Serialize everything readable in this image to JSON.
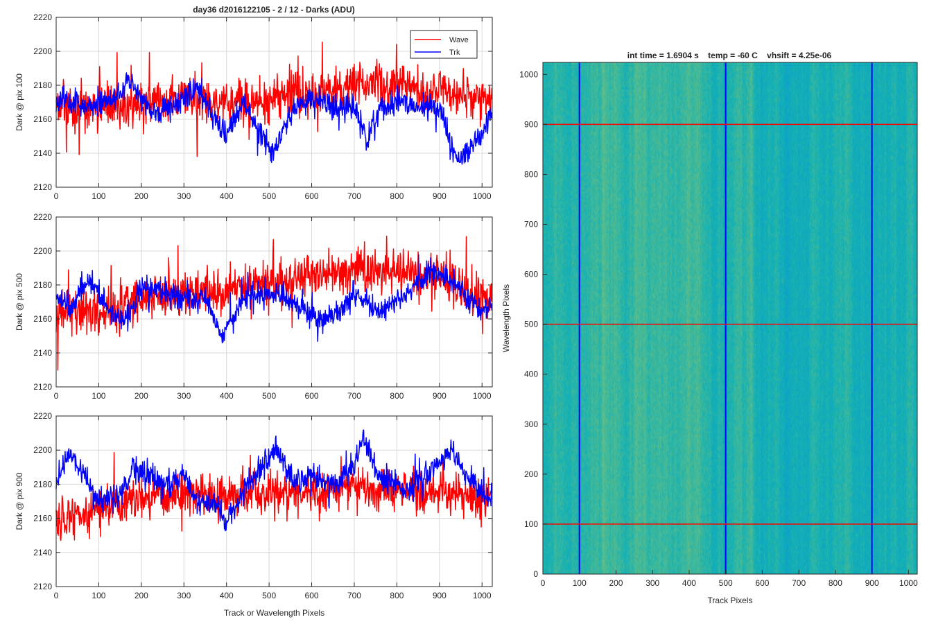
{
  "figure_title": "day36 d2016122105 - 2 / 12 - Darks (ADU)",
  "colors": {
    "wave": "#ff0000",
    "trk": "#0000ff",
    "grid": "#d8d8d8",
    "axis": "#262626"
  },
  "chart_data": [
    {
      "type": "line",
      "ylabel": "Dark @ pix 100",
      "xlabel": "",
      "xlim": [
        0,
        1024
      ],
      "ylim": [
        2120,
        2220
      ],
      "xticks": [
        0,
        100,
        200,
        300,
        400,
        500,
        600,
        700,
        800,
        900,
        1000
      ],
      "yticks": [
        2120,
        2140,
        2160,
        2180,
        2200,
        2220
      ],
      "grid": true,
      "legend": {
        "placement": "top-right",
        "entries": [
          "Wave",
          "Trk"
        ]
      },
      "series": [
        {
          "name": "Wave",
          "color": "#ff0000",
          "noise": 9,
          "trend": [
            [
              0,
              2166
            ],
            [
              100,
              2168
            ],
            [
              200,
              2168
            ],
            [
              300,
              2172
            ],
            [
              400,
              2170
            ],
            [
              500,
              2172
            ],
            [
              600,
              2175
            ],
            [
              700,
              2180
            ],
            [
              800,
              2180
            ],
            [
              900,
              2178
            ],
            [
              1024,
              2172
            ]
          ]
        },
        {
          "name": "Trk",
          "color": "#0000ff",
          "noise": 5,
          "trend": [
            [
              0,
              2172
            ],
            [
              60,
              2168
            ],
            [
              120,
              2170
            ],
            [
              170,
              2182
            ],
            [
              230,
              2164
            ],
            [
              300,
              2170
            ],
            [
              330,
              2180
            ],
            [
              380,
              2156
            ],
            [
              400,
              2150
            ],
            [
              440,
              2170
            ],
            [
              480,
              2150
            ],
            [
              510,
              2142
            ],
            [
              560,
              2168
            ],
            [
              600,
              2172
            ],
            [
              660,
              2168
            ],
            [
              700,
              2165
            ],
            [
              730,
              2148
            ],
            [
              760,
              2165
            ],
            [
              800,
              2172
            ],
            [
              900,
              2165
            ],
            [
              940,
              2136
            ],
            [
              960,
              2140
            ],
            [
              1000,
              2152
            ],
            [
              1024,
              2165
            ]
          ]
        }
      ]
    },
    {
      "type": "line",
      "ylabel": "Dark @ pix 500",
      "xlabel": "",
      "xlim": [
        0,
        1024
      ],
      "ylim": [
        2120,
        2220
      ],
      "xticks": [
        0,
        100,
        200,
        300,
        400,
        500,
        600,
        700,
        800,
        900,
        1000
      ],
      "yticks": [
        2120,
        2140,
        2160,
        2180,
        2200,
        2220
      ],
      "grid": true,
      "series": [
        {
          "name": "Wave",
          "color": "#ff0000",
          "noise": 9,
          "trend": [
            [
              0,
              2165
            ],
            [
              100,
              2162
            ],
            [
              200,
              2172
            ],
            [
              300,
              2175
            ],
            [
              400,
              2176
            ],
            [
              500,
              2180
            ],
            [
              600,
              2185
            ],
            [
              700,
              2188
            ],
            [
              800,
              2188
            ],
            [
              900,
              2185
            ],
            [
              1024,
              2170
            ]
          ]
        },
        {
          "name": "Trk",
          "color": "#0000ff",
          "noise": 5,
          "trend": [
            [
              0,
              2172
            ],
            [
              40,
              2168
            ],
            [
              70,
              2182
            ],
            [
              100,
              2175
            ],
            [
              150,
              2158
            ],
            [
              180,
              2166
            ],
            [
              200,
              2180
            ],
            [
              300,
              2172
            ],
            [
              350,
              2172
            ],
            [
              390,
              2150
            ],
            [
              410,
              2160
            ],
            [
              450,
              2175
            ],
            [
              500,
              2176
            ],
            [
              560,
              2170
            ],
            [
              610,
              2160
            ],
            [
              660,
              2162
            ],
            [
              700,
              2175
            ],
            [
              760,
              2165
            ],
            [
              800,
              2170
            ],
            [
              880,
              2188
            ],
            [
              920,
              2185
            ],
            [
              960,
              2175
            ],
            [
              1000,
              2165
            ],
            [
              1024,
              2170
            ]
          ]
        }
      ]
    },
    {
      "type": "line",
      "ylabel": "Dark @ pix 900",
      "xlabel": "Track or Wavelength Pixels",
      "xlim": [
        0,
        1024
      ],
      "ylim": [
        2120,
        2220
      ],
      "xticks": [
        0,
        100,
        200,
        300,
        400,
        500,
        600,
        700,
        800,
        900,
        1000
      ],
      "yticks": [
        2120,
        2140,
        2160,
        2180,
        2200,
        2220
      ],
      "grid": true,
      "series": [
        {
          "name": "Wave",
          "color": "#ff0000",
          "noise": 9,
          "trend": [
            [
              0,
              2160
            ],
            [
              100,
              2165
            ],
            [
              200,
              2172
            ],
            [
              300,
              2175
            ],
            [
              400,
              2172
            ],
            [
              500,
              2174
            ],
            [
              600,
              2175
            ],
            [
              700,
              2178
            ],
            [
              800,
              2176
            ],
            [
              900,
              2175
            ],
            [
              1024,
              2172
            ]
          ]
        },
        {
          "name": "Trk",
          "color": "#0000ff",
          "noise": 5,
          "trend": [
            [
              0,
              2180
            ],
            [
              30,
              2198
            ],
            [
              60,
              2190
            ],
            [
              100,
              2170
            ],
            [
              150,
              2172
            ],
            [
              180,
              2190
            ],
            [
              220,
              2185
            ],
            [
              260,
              2180
            ],
            [
              300,
              2186
            ],
            [
              330,
              2170
            ],
            [
              380,
              2168
            ],
            [
              400,
              2158
            ],
            [
              450,
              2180
            ],
            [
              520,
              2200
            ],
            [
              560,
              2180
            ],
            [
              600,
              2185
            ],
            [
              650,
              2180
            ],
            [
              700,
              2190
            ],
            [
              720,
              2208
            ],
            [
              760,
              2185
            ],
            [
              820,
              2176
            ],
            [
              870,
              2185
            ],
            [
              930,
              2200
            ],
            [
              970,
              2182
            ],
            [
              1000,
              2175
            ],
            [
              1024,
              2170
            ]
          ]
        }
      ]
    },
    {
      "type": "heatmap",
      "title": "int time = 1.6904 s    temp = -60 C    vhsift = 4.25e-06",
      "xlabel": "Track Pixels",
      "ylabel": "Wavelength Pixels",
      "xlim": [
        0,
        1024
      ],
      "ylim": [
        0,
        1024
      ],
      "xticks": [
        0,
        100,
        200,
        300,
        400,
        500,
        600,
        700,
        800,
        900,
        1000
      ],
      "yticks": [
        0,
        100,
        200,
        300,
        400,
        500,
        600,
        700,
        800,
        900,
        1000
      ],
      "colormap": "parula",
      "vertical_markers": {
        "color": "#0000ff",
        "x": [
          100,
          500,
          900
        ]
      },
      "horizontal_markers": {
        "color": "#ff0000",
        "y": [
          100,
          500,
          900
        ]
      }
    }
  ]
}
